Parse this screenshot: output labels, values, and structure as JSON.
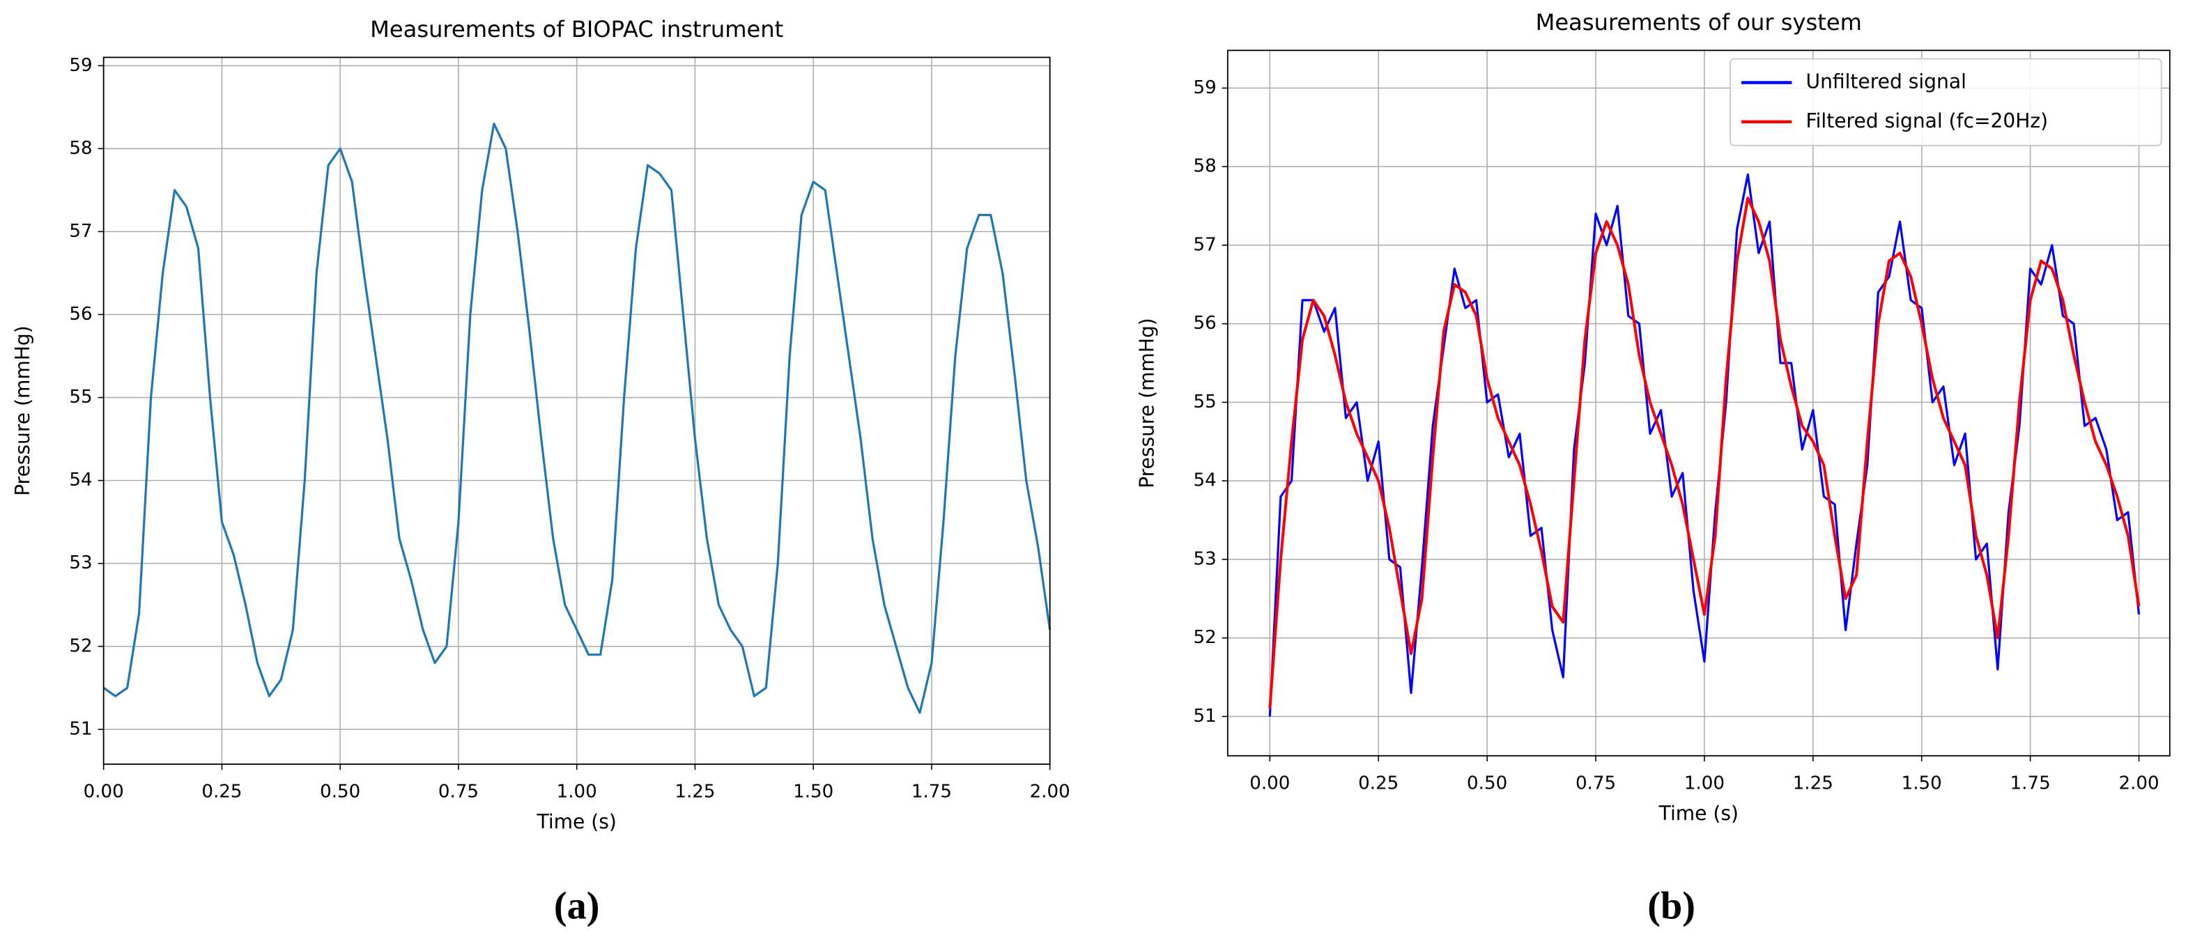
{
  "chart_data": [
    {
      "type": "line",
      "title": "Measurements of BIOPAC instrument",
      "x_label": "Time (s)",
      "y_label": "Pressure (mmHg)",
      "panel_label": "(a)",
      "x": [
        0,
        0.025,
        0.05,
        0.075,
        0.1,
        0.125,
        0.15,
        0.175,
        0.2,
        0.225,
        0.25,
        0.275,
        0.3,
        0.325,
        0.35,
        0.375,
        0.4,
        0.425,
        0.45,
        0.475,
        0.5,
        0.525,
        0.55,
        0.575,
        0.6,
        0.625,
        0.65,
        0.675,
        0.7,
        0.725,
        0.75,
        0.775,
        0.8,
        0.825,
        0.85,
        0.875,
        0.9,
        0.925,
        0.95,
        0.975,
        1.0,
        1.025,
        1.05,
        1.075,
        1.1,
        1.125,
        1.15,
        1.175,
        1.2,
        1.225,
        1.25,
        1.275,
        1.3,
        1.325,
        1.35,
        1.375,
        1.4,
        1.425,
        1.45,
        1.475,
        1.5,
        1.525,
        1.55,
        1.575,
        1.6,
        1.625,
        1.65,
        1.675,
        1.7,
        1.725,
        1.75,
        1.775,
        1.8,
        1.825,
        1.85,
        1.875,
        1.9,
        1.925,
        1.95,
        1.975,
        2.0
      ],
      "series": [
        {
          "name": "BIOPAC",
          "color": "#1f77b4",
          "values": [
            51.5,
            51.4,
            51.5,
            52.4,
            55.0,
            56.5,
            57.5,
            57.3,
            56.8,
            55.0,
            53.5,
            53.1,
            52.5,
            51.8,
            51.4,
            51.6,
            52.2,
            54.0,
            56.5,
            57.8,
            58.0,
            57.6,
            56.5,
            55.5,
            54.5,
            53.3,
            52.8,
            52.2,
            51.8,
            52.0,
            53.5,
            56.0,
            57.5,
            58.3,
            58.0,
            57.0,
            55.8,
            54.5,
            53.3,
            52.5,
            52.2,
            51.9,
            51.9,
            52.8,
            55.0,
            56.8,
            57.8,
            57.7,
            57.5,
            56.0,
            54.5,
            53.3,
            52.5,
            52.2,
            52.0,
            51.4,
            51.5,
            53.0,
            55.5,
            57.2,
            57.6,
            57.5,
            56.5,
            55.5,
            54.5,
            53.3,
            52.5,
            52.0,
            51.5,
            51.2,
            51.8,
            53.5,
            55.5,
            56.8,
            57.2,
            57.2,
            56.5,
            55.3,
            54.0,
            53.2,
            52.2
          ]
        }
      ],
      "xlim": [
        0,
        2
      ],
      "ylim": [
        50.58,
        59.1
      ],
      "xticks": [
        {
          "value": 0,
          "label": "0.00"
        },
        {
          "value": 0.25,
          "label": "0.25"
        },
        {
          "value": 0.5,
          "label": "0.50"
        },
        {
          "value": 0.75,
          "label": "0.75"
        },
        {
          "value": 1,
          "label": "1.00"
        },
        {
          "value": 1.25,
          "label": "1.25"
        },
        {
          "value": 1.5,
          "label": "1.50"
        },
        {
          "value": 1.75,
          "label": "1.75"
        },
        {
          "value": 2,
          "label": "2.00"
        }
      ],
      "yticks": [
        51,
        52,
        53,
        54,
        55,
        56,
        57,
        58,
        59
      ],
      "grid": true
    },
    {
      "type": "line",
      "title": "Measurements of our system",
      "x_label": "Time (s)",
      "y_label": "Pressure (mmHg)",
      "panel_label": "(b)",
      "legend": "upper right",
      "x": [
        0,
        0.025,
        0.05,
        0.075,
        0.1,
        0.125,
        0.15,
        0.175,
        0.2,
        0.225,
        0.25,
        0.275,
        0.3,
        0.325,
        0.35,
        0.375,
        0.4,
        0.425,
        0.45,
        0.475,
        0.5,
        0.525,
        0.55,
        0.575,
        0.6,
        0.625,
        0.65,
        0.675,
        0.7,
        0.725,
        0.75,
        0.775,
        0.8,
        0.825,
        0.85,
        0.875,
        0.9,
        0.925,
        0.95,
        0.975,
        1.0,
        1.025,
        1.05,
        1.075,
        1.1,
        1.125,
        1.15,
        1.175,
        1.2,
        1.225,
        1.25,
        1.275,
        1.3,
        1.325,
        1.35,
        1.375,
        1.4,
        1.425,
        1.45,
        1.475,
        1.5,
        1.525,
        1.55,
        1.575,
        1.6,
        1.625,
        1.65,
        1.675,
        1.7,
        1.725,
        1.75,
        1.775,
        1.8,
        1.825,
        1.85,
        1.875,
        1.9,
        1.925,
        1.95,
        1.975,
        2.0
      ],
      "series": [
        {
          "name": "Unfiltered signal",
          "color": "#0000ff",
          "values": [
            51.0,
            53.8,
            54.0,
            56.3,
            56.3,
            55.9,
            56.2,
            54.8,
            55.0,
            54.0,
            54.5,
            53.0,
            52.9,
            51.3,
            52.9,
            54.7,
            55.7,
            56.7,
            56.2,
            56.3,
            55.0,
            55.1,
            54.3,
            54.6,
            53.3,
            53.4,
            52.1,
            51.5,
            54.4,
            55.5,
            57.4,
            57.0,
            57.5,
            56.1,
            56.0,
            54.6,
            54.9,
            53.8,
            54.1,
            52.6,
            51.7,
            53.6,
            55.0,
            57.2,
            57.9,
            56.9,
            57.3,
            55.5,
            55.5,
            54.4,
            54.9,
            53.8,
            53.7,
            52.1,
            53.2,
            54.2,
            56.4,
            56.6,
            57.3,
            56.3,
            56.2,
            55.0,
            55.2,
            54.2,
            54.6,
            53.0,
            53.2,
            51.6,
            53.6,
            54.7,
            56.7,
            56.5,
            57.0,
            56.1,
            56.0,
            54.7,
            54.8,
            54.4,
            53.5,
            53.6,
            52.3
          ]
        },
        {
          "name": "Filtered signal (fc=20Hz)",
          "color": "#ff0000",
          "values": [
            51.1,
            53.0,
            54.5,
            55.8,
            56.3,
            56.1,
            55.6,
            55.0,
            54.6,
            54.3,
            54.0,
            53.4,
            52.6,
            51.8,
            52.5,
            54.3,
            55.9,
            56.5,
            56.4,
            56.1,
            55.3,
            54.8,
            54.5,
            54.2,
            53.7,
            53.1,
            52.4,
            52.2,
            54.0,
            55.8,
            56.9,
            57.3,
            57.0,
            56.5,
            55.6,
            55.0,
            54.6,
            54.2,
            53.7,
            53.0,
            52.3,
            53.3,
            55.3,
            56.8,
            57.6,
            57.3,
            56.8,
            55.8,
            55.2,
            54.7,
            54.5,
            54.2,
            53.3,
            52.5,
            52.8,
            54.5,
            56.0,
            56.8,
            56.9,
            56.6,
            56.0,
            55.3,
            54.8,
            54.5,
            54.2,
            53.3,
            52.8,
            52.0,
            53.3,
            55.0,
            56.3,
            56.8,
            56.7,
            56.3,
            55.6,
            55.0,
            54.5,
            54.2,
            53.8,
            53.3,
            52.4
          ]
        }
      ],
      "xlim": [
        -0.097,
        2.071
      ],
      "ylim": [
        50.5,
        59.48
      ],
      "xticks": [
        {
          "value": 0,
          "label": "0.00"
        },
        {
          "value": 0.25,
          "label": "0.25"
        },
        {
          "value": 0.5,
          "label": "0.50"
        },
        {
          "value": 0.75,
          "label": "0.75"
        },
        {
          "value": 1,
          "label": "1.00"
        },
        {
          "value": 1.25,
          "label": "1.25"
        },
        {
          "value": 1.5,
          "label": "1.50"
        },
        {
          "value": 1.75,
          "label": "1.75"
        },
        {
          "value": 2,
          "label": "2.00"
        }
      ],
      "yticks": [
        51,
        52,
        53,
        54,
        55,
        56,
        57,
        58,
        59
      ],
      "grid": true
    }
  ]
}
